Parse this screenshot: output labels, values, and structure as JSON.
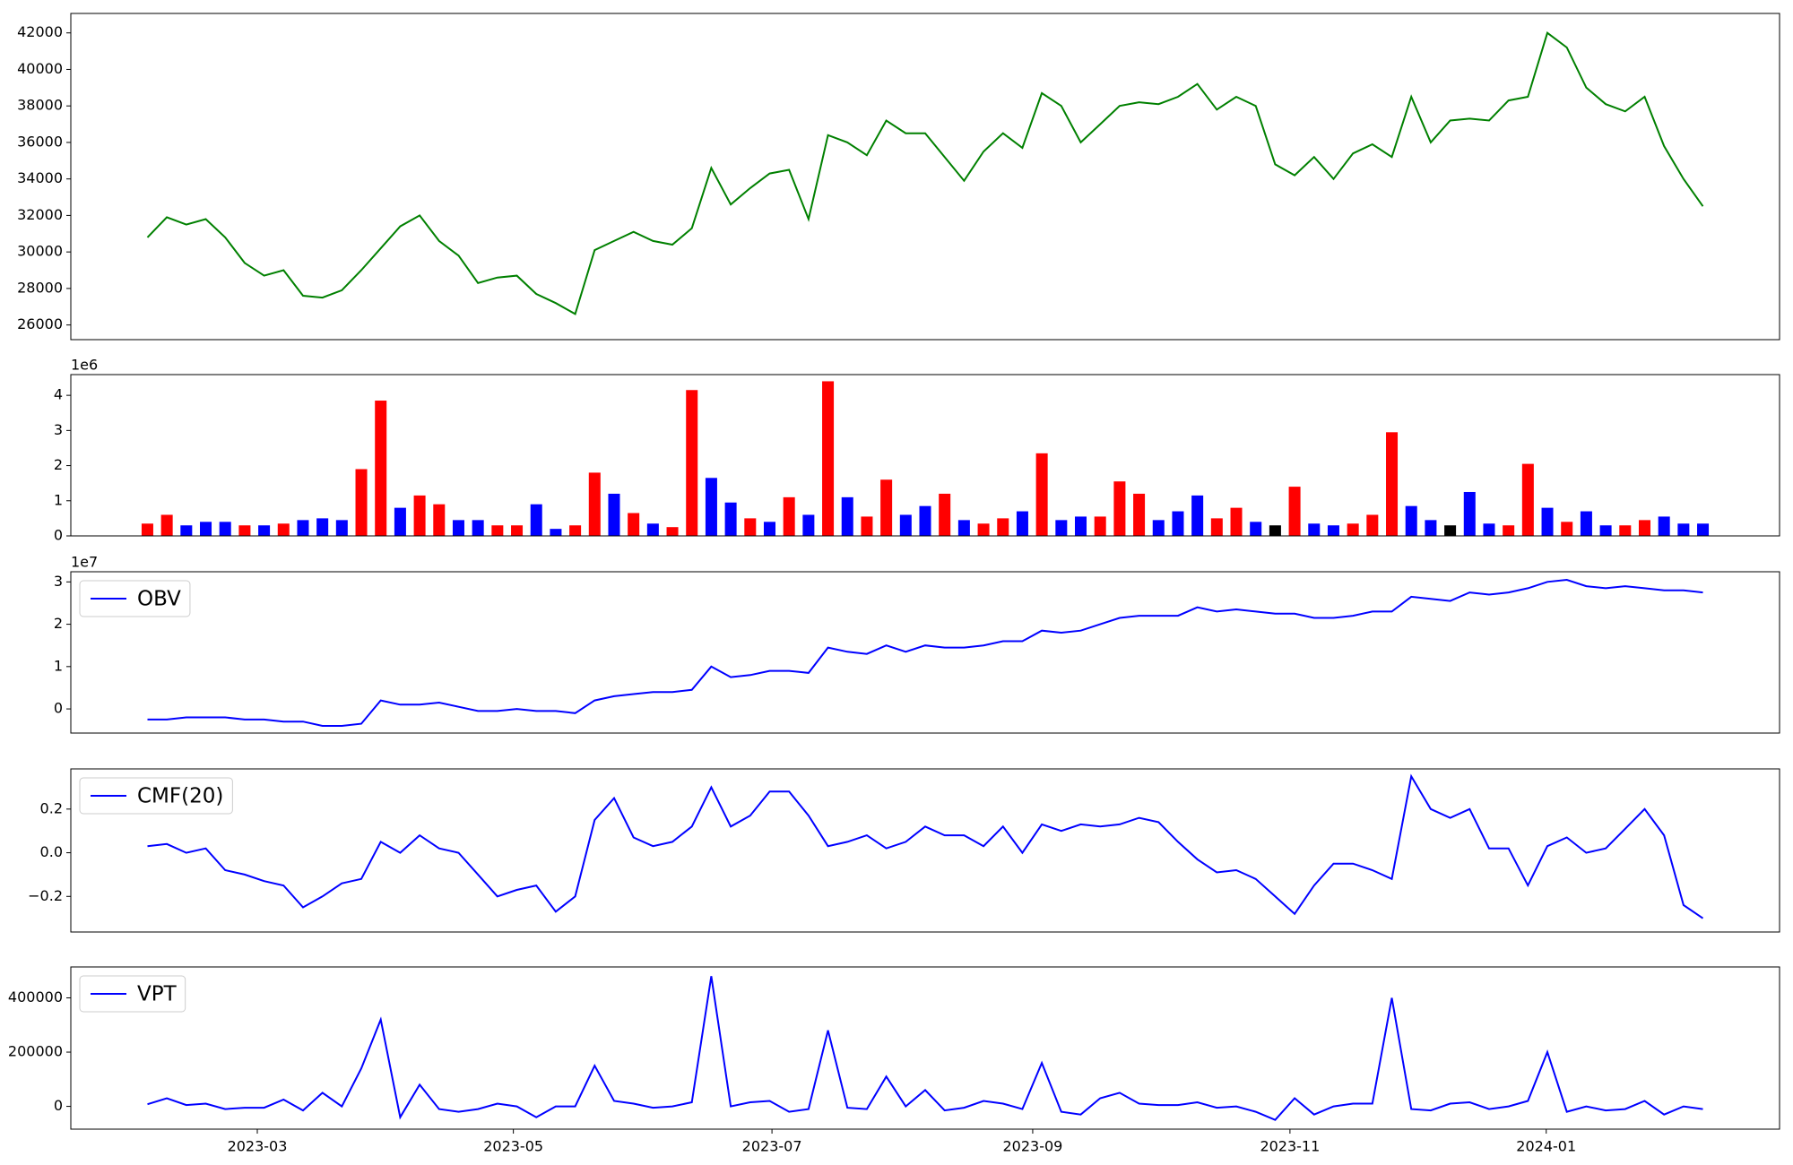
{
  "chart_data": [
    {
      "type": "line",
      "xlim": [
        -3.94,
        83.94
      ],
      "ylim": [
        25196,
        43066
      ],
      "yticks": [
        26000,
        28000,
        30000,
        32000,
        34000,
        36000,
        38000,
        40000,
        42000
      ],
      "series": [
        {
          "color": "green",
          "values": [
            30800,
            31900,
            31500,
            31800,
            30800,
            29400,
            28700,
            29000,
            27600,
            27500,
            27900,
            29000,
            30200,
            31400,
            32000,
            30600,
            29800,
            28300,
            28600,
            28700,
            27700,
            27200,
            26600,
            30100,
            30600,
            31100,
            30600,
            30400,
            31300,
            34600,
            32600,
            33500,
            34300,
            34500,
            31800,
            36400,
            36000,
            35300,
            37200,
            36500,
            36500,
            35200,
            33900,
            35500,
            36500,
            35700,
            38700,
            38000,
            36000,
            37000,
            38000,
            38200,
            38100,
            38500,
            39200,
            37800,
            38500,
            38000,
            34800,
            34200,
            35200,
            34000,
            35400,
            35900,
            35200,
            38500,
            36000,
            37200,
            37300,
            37200,
            38300,
            38500,
            42000,
            41200,
            39000,
            38100,
            37700,
            38500,
            35800,
            34000,
            32500
          ]
        }
      ]
    },
    {
      "type": "bar",
      "xlim": [
        -3.94,
        83.94
      ],
      "ylim": [
        0,
        4.59
      ],
      "yticks": [
        0,
        1,
        2,
        3,
        4
      ],
      "y_offset_label": "1e6",
      "values": [
        0.35,
        0.6,
        0.3,
        0.4,
        0.4,
        0.3,
        0.3,
        0.35,
        0.45,
        0.5,
        0.45,
        1.9,
        3.85,
        0.8,
        1.15,
        0.9,
        0.45,
        0.45,
        0.3,
        0.3,
        0.9,
        0.2,
        0.3,
        1.8,
        1.2,
        0.65,
        0.35,
        0.25,
        4.15,
        1.65,
        0.95,
        0.5,
        0.4,
        1.1,
        0.6,
        4.4,
        1.1,
        0.55,
        1.6,
        0.6,
        0.85,
        1.2,
        0.45,
        0.35,
        0.5,
        0.7,
        2.35,
        0.45,
        0.55,
        0.55,
        1.55,
        1.2,
        0.45,
        0.7,
        1.15,
        0.5,
        0.8,
        0.4,
        0.3,
        1.4,
        0.35,
        0.3,
        0.35,
        0.6,
        2.95,
        0.85,
        0.45,
        0.3,
        1.25,
        0.35,
        0.3,
        2.05,
        0.8,
        0.4,
        0.7,
        0.3,
        0.3,
        0.45,
        0.55,
        0.35,
        0.35
      ],
      "colors": [
        "red",
        "red",
        "blue",
        "blue",
        "blue",
        "red",
        "blue",
        "red",
        "blue",
        "blue",
        "blue",
        "red",
        "red",
        "blue",
        "red",
        "red",
        "blue",
        "blue",
        "red",
        "red",
        "blue",
        "blue",
        "red",
        "red",
        "blue",
        "red",
        "blue",
        "red",
        "red",
        "blue",
        "blue",
        "red",
        "blue",
        "red",
        "blue",
        "red",
        "blue",
        "red",
        "red",
        "blue",
        "blue",
        "red",
        "blue",
        "red",
        "red",
        "blue",
        "red",
        "blue",
        "blue",
        "red",
        "red",
        "red",
        "blue",
        "blue",
        "blue",
        "red",
        "red",
        "blue",
        "black",
        "red",
        "blue",
        "blue",
        "red",
        "red",
        "red",
        "blue",
        "blue",
        "black",
        "blue",
        "blue",
        "red",
        "red",
        "blue",
        "red",
        "blue",
        "blue",
        "red",
        "red",
        "blue",
        "blue",
        "blue"
      ]
    },
    {
      "type": "line",
      "xlim": [
        -3.94,
        83.94
      ],
      "ylim": [
        -0.57,
        3.24
      ],
      "yticks": [
        0,
        1,
        2,
        3
      ],
      "y_offset_label": "1e7",
      "legend": "upper left",
      "series": [
        {
          "name": "OBV",
          "color": "blue",
          "values": [
            -0.25,
            -0.25,
            -0.2,
            -0.2,
            -0.2,
            -0.25,
            -0.25,
            -0.3,
            -0.3,
            -0.4,
            -0.4,
            -0.35,
            0.2,
            0.1,
            0.1,
            0.15,
            0.05,
            -0.05,
            -0.05,
            0,
            -0.05,
            -0.05,
            -0.1,
            0.2,
            0.3,
            0.35,
            0.4,
            0.4,
            0.45,
            1.0,
            0.75,
            0.8,
            0.9,
            0.9,
            0.85,
            1.45,
            1.35,
            1.3,
            1.5,
            1.35,
            1.5,
            1.45,
            1.45,
            1.5,
            1.6,
            1.6,
            1.85,
            1.8,
            1.85,
            2.0,
            2.15,
            2.2,
            2.2,
            2.2,
            2.4,
            2.3,
            2.35,
            2.3,
            2.25,
            2.25,
            2.15,
            2.15,
            2.2,
            2.3,
            2.3,
            2.65,
            2.6,
            2.55,
            2.75,
            2.7,
            2.75,
            2.85,
            3.0,
            3.05,
            2.9,
            2.85,
            2.9,
            2.85,
            2.8,
            2.8,
            2.75
          ]
        }
      ]
    },
    {
      "type": "line",
      "xlim": [
        -3.94,
        83.94
      ],
      "ylim": [
        -0.363,
        0.384
      ],
      "legend": "upper left",
      "yticks": [
        {
          "value": -0.2,
          "label": "−0.2"
        },
        {
          "value": 0,
          "label": "0.0"
        },
        {
          "value": 0.2,
          "label": "0.2"
        }
      ],
      "series": [
        {
          "name": "CMF(20)",
          "color": "blue",
          "values": [
            0.03,
            0.04,
            0,
            0.02,
            -0.08,
            -0.1,
            -0.13,
            -0.15,
            -0.25,
            -0.2,
            -0.14,
            -0.12,
            0.05,
            0,
            0.08,
            0.02,
            0,
            -0.1,
            -0.2,
            -0.17,
            -0.15,
            -0.27,
            -0.2,
            0.15,
            0.25,
            0.07,
            0.03,
            0.05,
            0.12,
            0.3,
            0.12,
            0.17,
            0.28,
            0.28,
            0.17,
            0.03,
            0.05,
            0.08,
            0.02,
            0.05,
            0.12,
            0.08,
            0.08,
            0.03,
            0.12,
            0,
            0.13,
            0.1,
            0.13,
            0.12,
            0.13,
            0.16,
            0.14,
            0.05,
            -0.03,
            -0.09,
            -0.08,
            -0.12,
            -0.2,
            -0.28,
            -0.15,
            -0.05,
            -0.05,
            -0.08,
            -0.12,
            0.35,
            0.2,
            0.16,
            0.2,
            0.02,
            0.02,
            -0.15,
            0.03,
            0.07,
            0,
            0.02,
            0.11,
            0.2,
            0.08,
            -0.24,
            -0.3
          ]
        }
      ]
    },
    {
      "type": "line",
      "xlim": [
        -3.94,
        83.94
      ],
      "ylim": [
        -84000,
        514000
      ],
      "yticks": [
        0,
        200000,
        400000
      ],
      "legend": "upper left",
      "xticks": [
        {
          "value": 5.65,
          "label": "2023-03"
        },
        {
          "value": 18.82,
          "label": "2023-05"
        },
        {
          "value": 32.12,
          "label": "2023-07"
        },
        {
          "value": 45.53,
          "label": "2023-09"
        },
        {
          "value": 58.76,
          "label": "2023-11"
        },
        {
          "value": 71.94,
          "label": "2024-01"
        }
      ],
      "series": [
        {
          "name": "VPT",
          "color": "blue",
          "values": [
            8000,
            30000,
            5000,
            10000,
            -10000,
            -5000,
            -5000,
            25000,
            -15000,
            50000,
            0,
            140000,
            320000,
            -40000,
            80000,
            -10000,
            -20000,
            -10000,
            10000,
            0,
            -40000,
            0,
            0,
            150000,
            20000,
            10000,
            -5000,
            0,
            15000,
            480000,
            0,
            15000,
            20000,
            -20000,
            -10000,
            280000,
            -5000,
            -10000,
            110000,
            0,
            60000,
            -15000,
            -5000,
            20000,
            10000,
            -10000,
            160000,
            -20000,
            -30000,
            30000,
            50000,
            10000,
            5000,
            5000,
            15000,
            -5000,
            0,
            -20000,
            -50000,
            30000,
            -30000,
            0,
            10000,
            10000,
            400000,
            -10000,
            -15000,
            10000,
            15000,
            -10000,
            0,
            20000,
            200000,
            -20000,
            0,
            -15000,
            -10000,
            20000,
            -30000,
            0,
            -10000
          ]
        }
      ]
    }
  ]
}
